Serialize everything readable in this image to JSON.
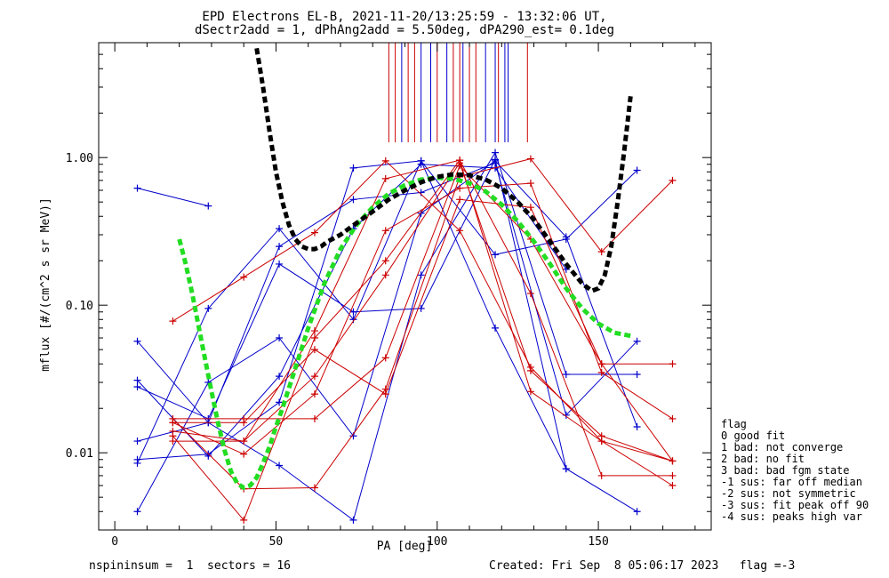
{
  "chart_data": {
    "type": "line",
    "title_line1": "EPD Electrons EL-B, 2021-11-20/13:25:59 - 13:32:06 UT,",
    "title_line2": "dSectr2add = 1, dPhAng2add = 5.50deg, dPA290_est=   0.1deg",
    "xlabel": "PA [deg]",
    "ylabel": "mflux [#/(cm^2 s sr MeV)]",
    "xlim": [
      -5,
      185
    ],
    "ylim": [
      0.003,
      6.0
    ],
    "yscale": "log",
    "x_ticks": [
      0,
      50,
      100,
      150
    ],
    "x_tick_labels": [
      "0",
      "50",
      "100",
      "150"
    ],
    "y_ticks": [
      0.01,
      0.1,
      1.0
    ],
    "y_tick_labels": [
      "0.01",
      "0.10",
      "1.00"
    ],
    "colors": {
      "blue": "#0000cc",
      "red": "#cc0000",
      "fit_black": "#000000",
      "fit_green": "#22dd22"
    },
    "series": [
      {
        "color": "blue",
        "x": [
          7,
          29
        ],
        "y": [
          0.62,
          0.47
        ]
      },
      {
        "color": "blue",
        "x": [
          7,
          29,
          51,
          74,
          95,
          118,
          140,
          162
        ],
        "y": [
          0.004,
          0.03,
          0.06,
          0.013,
          0.42,
          0.95,
          0.29,
          0.015
        ]
      },
      {
        "color": "blue",
        "x": [
          7,
          29,
          51,
          74,
          95,
          118,
          140,
          162
        ],
        "y": [
          0.0085,
          0.095,
          0.33,
          0.08,
          0.95,
          0.07,
          0.0078,
          0.004
        ]
      },
      {
        "color": "blue",
        "x": [
          7,
          29,
          51,
          74,
          95,
          118,
          140,
          162
        ],
        "y": [
          0.057,
          0.016,
          0.0082,
          0.0035,
          0.16,
          1.08,
          0.034,
          0.034
        ]
      },
      {
        "color": "blue",
        "x": [
          7,
          29,
          51,
          74,
          95,
          118,
          140,
          162
        ],
        "y": [
          0.012,
          0.016,
          0.25,
          0.52,
          0.58,
          0.92,
          0.018,
          0.057
        ]
      },
      {
        "color": "blue",
        "x": [
          7,
          29,
          51,
          74,
          95,
          118,
          140,
          162
        ],
        "y": [
          0.009,
          0.0098,
          0.022,
          0.85,
          0.95,
          0.22,
          0.28,
          0.82
        ]
      },
      {
        "color": "blue",
        "x": [
          7,
          29,
          51,
          74,
          95,
          118,
          140
        ],
        "y": [
          0.028,
          0.017,
          0.19,
          0.09,
          0.095,
          0.97,
          0.0078
        ]
      },
      {
        "color": "blue",
        "x": [
          7,
          29,
          51,
          74,
          95,
          118,
          140
        ],
        "y": [
          0.031,
          0.0095,
          0.033,
          0.33,
          0.9,
          0.85,
          0.175
        ]
      },
      {
        "color": "red",
        "x": [
          18,
          40,
          62,
          84,
          107,
          129,
          151,
          173
        ],
        "y": [
          0.078,
          0.155,
          0.31,
          0.95,
          0.32,
          0.038,
          0.012,
          0.0088
        ]
      },
      {
        "color": "red",
        "x": [
          18,
          40,
          62,
          84,
          107,
          129,
          151,
          173
        ],
        "y": [
          0.017,
          0.0057,
          0.0058,
          0.027,
          0.74,
          0.98,
          0.23,
          0.7
        ]
      },
      {
        "color": "red",
        "x": [
          18,
          40,
          62,
          84,
          107,
          129,
          151,
          173
        ],
        "y": [
          0.017,
          0.017,
          0.017,
          0.044,
          0.88,
          0.28,
          0.04,
          0.04
        ]
      },
      {
        "color": "red",
        "x": [
          18,
          40,
          62,
          84,
          107,
          129,
          151,
          173
        ],
        "y": [
          0.013,
          0.0035,
          0.06,
          0.2,
          0.96,
          0.12,
          0.007,
          0.007
        ]
      },
      {
        "color": "red",
        "x": [
          18,
          40,
          62,
          84,
          107,
          129,
          151,
          173
        ],
        "y": [
          0.014,
          0.012,
          0.033,
          0.16,
          0.92,
          0.036,
          0.013,
          0.0088
        ]
      },
      {
        "color": "red",
        "x": [
          18,
          40,
          62,
          84,
          107,
          129,
          151,
          173
        ],
        "y": [
          0.012,
          0.012,
          0.067,
          0.72,
          0.96,
          0.026,
          0.012,
          0.006
        ]
      },
      {
        "color": "red",
        "x": [
          18,
          40,
          62,
          84,
          107,
          129,
          151,
          173
        ],
        "y": [
          0.016,
          0.0098,
          0.025,
          0.32,
          0.62,
          0.67,
          0.035,
          0.017
        ]
      },
      {
        "color": "red",
        "x": [
          18,
          40,
          62,
          84,
          107,
          129,
          151,
          173
        ],
        "y": [
          0.016,
          0.016,
          0.05,
          0.025,
          0.52,
          0.46,
          0.04,
          0.0088
        ]
      }
    ],
    "fit_black": {
      "x": [
        44,
        46,
        48,
        50,
        52,
        54,
        56,
        58,
        60,
        62,
        64,
        66,
        70,
        75,
        80,
        85,
        90,
        95,
        100,
        105,
        110,
        115,
        120,
        125,
        130,
        135,
        140,
        145,
        148,
        150,
        152,
        154,
        156,
        158,
        160
      ],
      "y": [
        5.5,
        3.0,
        1.5,
        0.8,
        0.5,
        0.35,
        0.28,
        0.25,
        0.24,
        0.24,
        0.25,
        0.27,
        0.3,
        0.36,
        0.43,
        0.52,
        0.6,
        0.68,
        0.74,
        0.77,
        0.76,
        0.71,
        0.62,
        0.5,
        0.38,
        0.27,
        0.19,
        0.14,
        0.125,
        0.13,
        0.16,
        0.25,
        0.5,
        1.1,
        2.6
      ]
    },
    "fit_green": {
      "x": [
        20,
        22,
        24,
        26,
        28,
        30,
        32,
        34,
        36,
        38,
        40,
        42,
        44,
        46,
        48,
        50,
        52,
        55,
        60,
        65,
        70,
        75,
        80,
        85,
        90,
        95,
        100,
        105,
        110,
        115,
        120,
        125,
        130,
        135,
        140,
        145,
        150,
        155,
        160
      ],
      "y": [
        0.28,
        0.19,
        0.12,
        0.072,
        0.043,
        0.026,
        0.016,
        0.0105,
        0.0075,
        0.0062,
        0.0058,
        0.006,
        0.0068,
        0.0085,
        0.011,
        0.015,
        0.02,
        0.032,
        0.07,
        0.14,
        0.24,
        0.35,
        0.46,
        0.57,
        0.65,
        0.71,
        0.73,
        0.72,
        0.67,
        0.59,
        0.48,
        0.37,
        0.27,
        0.19,
        0.13,
        0.095,
        0.075,
        0.065,
        0.062
      ]
    },
    "markers": [
      {
        "color": "red",
        "x": 85
      },
      {
        "color": "red",
        "x": 87
      },
      {
        "color": "blue",
        "x": 89
      },
      {
        "color": "red",
        "x": 91
      },
      {
        "color": "red",
        "x": 93
      },
      {
        "color": "blue",
        "x": 95
      },
      {
        "color": "blue",
        "x": 98
      },
      {
        "color": "red",
        "x": 100
      },
      {
        "color": "blue",
        "x": 103
      },
      {
        "color": "red",
        "x": 105
      },
      {
        "color": "red",
        "x": 107
      },
      {
        "color": "blue",
        "x": 108
      },
      {
        "color": "red",
        "x": 110
      },
      {
        "color": "red",
        "x": 112
      },
      {
        "color": "blue",
        "x": 115
      },
      {
        "color": "blue",
        "x": 118
      },
      {
        "color": "red",
        "x": 119
      },
      {
        "color": "blue",
        "x": 121
      },
      {
        "color": "blue",
        "x": 122
      },
      {
        "color": "red",
        "x": 128
      }
    ],
    "legend": {
      "position": "right",
      "items": [
        "flag",
        " 0 good fit",
        " 1 bad: not converge",
        " 2 bad: no fit",
        " 3 bad: bad fgm state",
        "-1 sus: far off median",
        "-2 sus: not symmetric",
        "-3 sus: fit peak off 90",
        "-4 sus: peaks high var"
      ]
    }
  },
  "footer": {
    "left": "nspininsum =  1  sectors = 16",
    "right": "Created: Fri Sep  8 05:06:17 2023   flag =-3"
  }
}
